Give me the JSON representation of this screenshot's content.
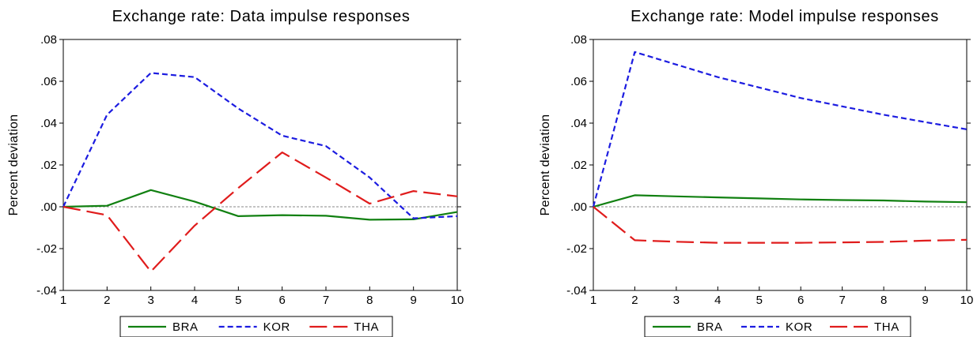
{
  "colors": {
    "BRA": "#118011",
    "KOR": "#1c1ce0",
    "THA": "#e01c1c",
    "zero_line": "#888888"
  },
  "chart_data": [
    {
      "type": "line",
      "title": "Exchange rate: Data impulse responses",
      "ylabel": "Percent deviation",
      "x": [
        1,
        2,
        3,
        4,
        5,
        6,
        7,
        8,
        9,
        10
      ],
      "x_tick_labels": [
        "1",
        "2",
        "3",
        "4",
        "5",
        "6",
        "7",
        "8",
        "9",
        "10"
      ],
      "ylim": [
        -0.04,
        0.08
      ],
      "y_ticks": [
        -0.04,
        -0.02,
        0.0,
        0.02,
        0.04,
        0.06,
        0.08
      ],
      "y_tick_labels": [
        "-.04",
        "-.02",
        ".00",
        ".02",
        ".04",
        ".06",
        ".08"
      ],
      "zero_line": true,
      "legend_position": "bottom",
      "series": [
        {
          "name": "BRA",
          "values": [
            0.0,
            0.0005,
            0.008,
            0.0025,
            -0.0045,
            -0.004,
            -0.0043,
            -0.0062,
            -0.006,
            -0.0025
          ]
        },
        {
          "name": "KOR",
          "values": [
            0.0,
            0.044,
            0.064,
            0.062,
            0.047,
            0.034,
            0.029,
            0.014,
            -0.0055,
            -0.0045
          ]
        },
        {
          "name": "THA",
          "values": [
            0.0,
            -0.004,
            -0.031,
            -0.009,
            0.009,
            0.026,
            0.014,
            0.0015,
            0.0075,
            0.005
          ]
        }
      ]
    },
    {
      "type": "line",
      "title": "Exchange rate: Model impulse responses",
      "ylabel": "Percent deviation",
      "x": [
        1,
        2,
        3,
        4,
        5,
        6,
        7,
        8,
        9,
        10
      ],
      "x_tick_labels": [
        "1",
        "2",
        "3",
        "4",
        "5",
        "6",
        "7",
        "8",
        "9",
        "10"
      ],
      "ylim": [
        -0.04,
        0.08
      ],
      "y_ticks": [
        -0.04,
        -0.02,
        0.0,
        0.02,
        0.04,
        0.06,
        0.08
      ],
      "y_tick_labels": [
        "-.04",
        "-.02",
        ".00",
        ".02",
        ".04",
        ".06",
        ".08"
      ],
      "zero_line": true,
      "legend_position": "bottom",
      "series": [
        {
          "name": "BRA",
          "values": [
            0.0,
            0.0055,
            0.005,
            0.0045,
            0.004,
            0.0035,
            0.0032,
            0.003,
            0.0025,
            0.0022
          ]
        },
        {
          "name": "KOR",
          "values": [
            0.0,
            0.074,
            0.068,
            0.062,
            0.057,
            0.052,
            0.048,
            0.044,
            0.0405,
            0.037
          ]
        },
        {
          "name": "THA",
          "values": [
            0.0,
            -0.016,
            -0.0167,
            -0.0172,
            -0.0172,
            -0.0172,
            -0.017,
            -0.0168,
            -0.0162,
            -0.0158
          ]
        }
      ]
    }
  ]
}
